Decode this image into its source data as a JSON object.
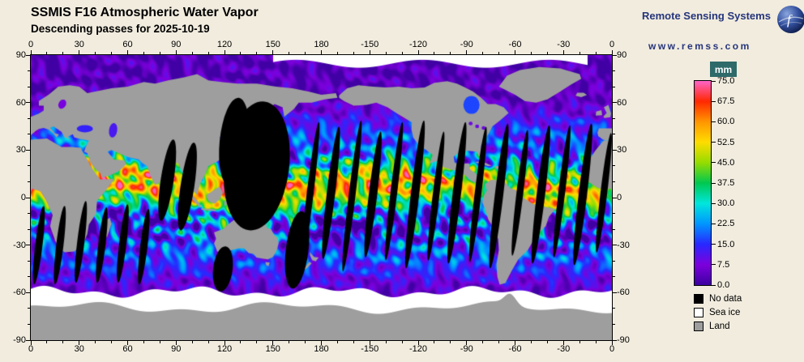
{
  "header": {
    "title": "SSMIS F16 Atmospheric Water Vapor",
    "subtitle": "Descending passes for 2025-10-19"
  },
  "branding": {
    "name": "Remote Sensing Systems",
    "url": "www.remss.com",
    "logo": "globe-icon"
  },
  "axes": {
    "lon_tick_labels": [
      "0",
      "30",
      "60",
      "90",
      "120",
      "150",
      "180",
      "-150",
      "-120",
      "-90",
      "-60",
      "-30",
      "0"
    ],
    "lat_tick_labels": [
      "90",
      "60",
      "30",
      "0",
      "-30",
      "-60",
      "-90"
    ]
  },
  "colorbar": {
    "unit": "mm",
    "min_mm": 0.0,
    "max_mm": 75.0,
    "tick_labels": [
      "75.0",
      "67.5",
      "60.0",
      "52.5",
      "45.0",
      "37.5",
      "30.0",
      "22.5",
      "15.0",
      "7.5",
      "0.0"
    ],
    "stops": [
      {
        "mm": 0,
        "color": "#3c00a0"
      },
      {
        "mm": 7.5,
        "color": "#7d00dc"
      },
      {
        "mm": 15,
        "color": "#2828ff"
      },
      {
        "mm": 22.5,
        "color": "#0096ff"
      },
      {
        "mm": 30,
        "color": "#00e6dc"
      },
      {
        "mm": 37.5,
        "color": "#00c850"
      },
      {
        "mm": 45,
        "color": "#96dc00"
      },
      {
        "mm": 52.5,
        "color": "#ffdc00"
      },
      {
        "mm": 60,
        "color": "#ff9600"
      },
      {
        "mm": 67.5,
        "color": "#ff2800"
      },
      {
        "mm": 75,
        "color": "#ff64c8"
      }
    ]
  },
  "legend": {
    "items": [
      {
        "label": "No data",
        "color": "#000000"
      },
      {
        "label": "Sea ice",
        "color": "#ffffff"
      },
      {
        "label": "Land",
        "color": "#9e9e9e"
      }
    ]
  },
  "colors": {
    "background": "#f1ecde",
    "brand_navy": "#26357c",
    "unit_badge_bg": "#2e6a6a",
    "unit_badge_text": "#ffffff",
    "land": "#9e9e9e",
    "no_data": "#000000",
    "sea_ice": "#ffffff"
  }
}
